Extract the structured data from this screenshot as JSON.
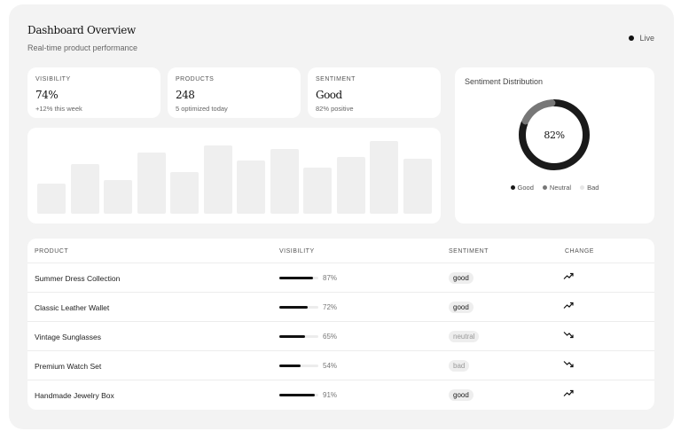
{
  "header": {
    "title": "Dashboard Overview",
    "subtitle": "Real-time product performance",
    "live_label": "Live"
  },
  "stats": [
    {
      "label": "VISIBILITY",
      "value": "74%",
      "sub": "+12% this week"
    },
    {
      "label": "PRODUCTS",
      "value": "248",
      "sub": "5 optimized today"
    },
    {
      "label": "SENTIMENT",
      "value": "Good",
      "sub": "82% positive"
    }
  ],
  "bar_chart": {
    "type": "bar",
    "values": [
      34,
      56,
      38,
      69,
      47,
      77,
      60,
      73,
      52,
      64,
      82,
      62
    ]
  },
  "sentiment_distribution": {
    "title": "Sentiment Distribution",
    "center_label": "82%",
    "slices": [
      {
        "label": "Good",
        "value": 82,
        "color": "#1a1a1a"
      },
      {
        "label": "Neutral",
        "value": 18,
        "color": "#777777"
      },
      {
        "label": "Bad",
        "value": 0,
        "color": "#e6e6e6"
      }
    ]
  },
  "table": {
    "headers": {
      "product": "PRODUCT",
      "visibility": "VISIBILITY",
      "sentiment": "SENTIMENT",
      "change": "CHANGE"
    },
    "rows": [
      {
        "product": "Summer Dress Collection",
        "visibility": 87,
        "visibility_label": "87%",
        "sentiment": "good",
        "change": "trending-up-icon"
      },
      {
        "product": "Classic Leather Wallet",
        "visibility": 72,
        "visibility_label": "72%",
        "sentiment": "good",
        "change": "trending-up-icon"
      },
      {
        "product": "Vintage Sunglasses",
        "visibility": 65,
        "visibility_label": "65%",
        "sentiment": "neutral",
        "change": "trending-down-icon"
      },
      {
        "product": "Premium Watch Set",
        "visibility": 54,
        "visibility_label": "54%",
        "sentiment": "bad",
        "change": "trending-down-icon"
      },
      {
        "product": "Handmade Jewelry Box",
        "visibility": 91,
        "visibility_label": "91%",
        "sentiment": "good",
        "change": "trending-up-icon"
      }
    ]
  },
  "colors": {
    "accent": "#111111",
    "badge_good_text": "#222222",
    "badge_muted_text": "#999999"
  }
}
